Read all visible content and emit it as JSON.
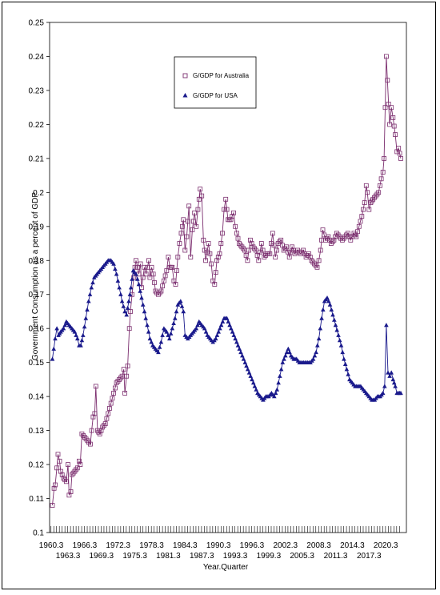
{
  "chart_data": {
    "type": "line",
    "xlabel": "Year.Quarter",
    "ylabel": "Government Consumption as a percent of GDP",
    "ylim": [
      0.1,
      0.25
    ],
    "yticks": [
      "0.1",
      "0.11",
      "0.12",
      "0.13",
      "0.14",
      "0.15",
      "0.16",
      "0.17",
      "0.18",
      "0.19",
      "0.2",
      "0.21",
      "0.22",
      "0.23",
      "0.24",
      "0.25"
    ],
    "xlim": [
      1960.0,
      2024.0
    ],
    "xticks_row1": [
      "1960.3",
      "1966.3",
      "1972.3",
      "1978.3",
      "1984.3",
      "1990.3",
      "1996.3",
      "2002.3",
      "2008.3",
      "2014.3",
      "2020.3"
    ],
    "xticks_row2": [
      "1963.3",
      "1969.3",
      "1975.3",
      "1981.3",
      "1987.3",
      "1993.3",
      "1999.3",
      "2005.3",
      "2011.3",
      "2017.3"
    ],
    "legend_position": "top-center",
    "series": [
      {
        "name": "G/GDP for Australia",
        "marker": "square-open",
        "color": "#7b2d6e",
        "anchors": [
          [
            1960.5,
            0.108
          ],
          [
            1960.8,
            0.113
          ],
          [
            1961.0,
            0.114
          ],
          [
            1961.3,
            0.119
          ],
          [
            1961.5,
            0.123
          ],
          [
            1961.8,
            0.121
          ],
          [
            1962.0,
            0.118
          ],
          [
            1962.5,
            0.116
          ],
          [
            1963.0,
            0.115
          ],
          [
            1963.3,
            0.12
          ],
          [
            1963.5,
            0.111
          ],
          [
            1963.8,
            0.112
          ],
          [
            1964.0,
            0.117
          ],
          [
            1964.5,
            0.118
          ],
          [
            1965.0,
            0.119
          ],
          [
            1965.3,
            0.121
          ],
          [
            1965.5,
            0.12
          ],
          [
            1965.8,
            0.129
          ],
          [
            1966.3,
            0.128
          ],
          [
            1966.8,
            0.127
          ],
          [
            1967.3,
            0.126
          ],
          [
            1967.8,
            0.134
          ],
          [
            1968.1,
            0.135
          ],
          [
            1968.3,
            0.143
          ],
          [
            1968.6,
            0.13
          ],
          [
            1969.0,
            0.129
          ],
          [
            1969.5,
            0.131
          ],
          [
            1970.0,
            0.132
          ],
          [
            1970.5,
            0.135
          ],
          [
            1971.0,
            0.138
          ],
          [
            1971.5,
            0.141
          ],
          [
            1972.0,
            0.144
          ],
          [
            1972.5,
            0.145
          ],
          [
            1973.0,
            0.146
          ],
          [
            1973.3,
            0.148
          ],
          [
            1973.5,
            0.141
          ],
          [
            1973.8,
            0.146
          ],
          [
            1974.0,
            0.149
          ],
          [
            1974.3,
            0.16
          ],
          [
            1974.5,
            0.165
          ],
          [
            1974.8,
            0.17
          ],
          [
            1975.1,
            0.175
          ],
          [
            1975.3,
            0.178
          ],
          [
            1975.5,
            0.18
          ],
          [
            1975.8,
            0.178
          ],
          [
            1976.0,
            0.176
          ],
          [
            1976.3,
            0.179
          ],
          [
            1976.5,
            0.172
          ],
          [
            1977.0,
            0.178
          ],
          [
            1977.3,
            0.176
          ],
          [
            1977.8,
            0.18
          ],
          [
            1978.0,
            0.175
          ],
          [
            1978.3,
            0.178
          ],
          [
            1978.6,
            0.176
          ],
          [
            1979.0,
            0.171
          ],
          [
            1979.5,
            0.17
          ],
          [
            1980.0,
            0.171
          ],
          [
            1980.5,
            0.174
          ],
          [
            1981.0,
            0.177
          ],
          [
            1981.3,
            0.181
          ],
          [
            1981.6,
            0.178
          ],
          [
            1982.0,
            0.178
          ],
          [
            1982.3,
            0.174
          ],
          [
            1982.6,
            0.173
          ],
          [
            1983.0,
            0.181
          ],
          [
            1983.3,
            0.185
          ],
          [
            1983.6,
            0.188
          ],
          [
            1984.0,
            0.192
          ],
          [
            1984.3,
            0.183
          ],
          [
            1984.6,
            0.187
          ],
          [
            1985.0,
            0.196
          ],
          [
            1985.3,
            0.181
          ],
          [
            1985.6,
            0.189
          ],
          [
            1986.0,
            0.194
          ],
          [
            1986.3,
            0.19
          ],
          [
            1986.6,
            0.195
          ],
          [
            1987.0,
            0.201
          ],
          [
            1987.3,
            0.199
          ],
          [
            1987.6,
            0.186
          ],
          [
            1988.0,
            0.18
          ],
          [
            1988.5,
            0.185
          ],
          [
            1989.0,
            0.179
          ],
          [
            1989.3,
            0.174
          ],
          [
            1989.6,
            0.173
          ],
          [
            1990.0,
            0.18
          ],
          [
            1990.5,
            0.182
          ],
          [
            1991.0,
            0.188
          ],
          [
            1991.3,
            0.195
          ],
          [
            1991.6,
            0.198
          ],
          [
            1992.0,
            0.192
          ],
          [
            1992.5,
            0.192
          ],
          [
            1993.0,
            0.194
          ],
          [
            1993.3,
            0.19
          ],
          [
            1993.6,
            0.188
          ],
          [
            1994.0,
            0.185
          ],
          [
            1994.5,
            0.184
          ],
          [
            1995.0,
            0.183
          ],
          [
            1995.5,
            0.18
          ],
          [
            1996.0,
            0.186
          ],
          [
            1996.5,
            0.184
          ],
          [
            1997.0,
            0.183
          ],
          [
            1997.5,
            0.18
          ],
          [
            1998.0,
            0.185
          ],
          [
            1998.5,
            0.181
          ],
          [
            1999.0,
            0.182
          ],
          [
            1999.5,
            0.182
          ],
          [
            2000.0,
            0.188
          ],
          [
            2000.5,
            0.181
          ],
          [
            2001.0,
            0.185
          ],
          [
            2001.5,
            0.186
          ],
          [
            2002.0,
            0.183
          ],
          [
            2002.5,
            0.184
          ],
          [
            2003.0,
            0.181
          ],
          [
            2003.5,
            0.184
          ],
          [
            2004.0,
            0.182
          ],
          [
            2004.5,
            0.183
          ],
          [
            2005.0,
            0.182
          ],
          [
            2005.5,
            0.183
          ],
          [
            2006.0,
            0.181
          ],
          [
            2006.5,
            0.182
          ],
          [
            2007.0,
            0.18
          ],
          [
            2007.5,
            0.179
          ],
          [
            2008.0,
            0.178
          ],
          [
            2008.3,
            0.18
          ],
          [
            2008.6,
            0.183
          ],
          [
            2009.0,
            0.189
          ],
          [
            2009.5,
            0.186
          ],
          [
            2010.0,
            0.187
          ],
          [
            2010.5,
            0.185
          ],
          [
            2011.0,
            0.186
          ],
          [
            2011.5,
            0.188
          ],
          [
            2012.0,
            0.187
          ],
          [
            2012.5,
            0.186
          ],
          [
            2013.0,
            0.187
          ],
          [
            2013.5,
            0.188
          ],
          [
            2014.0,
            0.186
          ],
          [
            2014.3,
            0.187
          ],
          [
            2014.6,
            0.188
          ],
          [
            2015.0,
            0.187
          ],
          [
            2015.5,
            0.19
          ],
          [
            2016.0,
            0.193
          ],
          [
            2016.5,
            0.197
          ],
          [
            2016.8,
            0.202
          ],
          [
            2017.0,
            0.2
          ],
          [
            2017.3,
            0.195
          ],
          [
            2017.6,
            0.197
          ],
          [
            2018.0,
            0.198
          ],
          [
            2018.5,
            0.199
          ],
          [
            2019.0,
            0.2
          ],
          [
            2019.5,
            0.204
          ],
          [
            2019.8,
            0.206
          ],
          [
            2020.0,
            0.21
          ],
          [
            2020.2,
            0.225
          ],
          [
            2020.4,
            0.24
          ],
          [
            2020.6,
            0.233
          ],
          [
            2020.8,
            0.226
          ],
          [
            2021.0,
            0.22
          ],
          [
            2021.3,
            0.225
          ],
          [
            2021.6,
            0.222
          ],
          [
            2022.0,
            0.217
          ],
          [
            2022.3,
            0.212
          ],
          [
            2022.6,
            0.213
          ],
          [
            2023.0,
            0.21
          ]
        ]
      },
      {
        "name": "G/GDP for USA",
        "marker": "triangle-filled",
        "color": "#1a1a8c",
        "anchors": [
          [
            1960.5,
            0.151
          ],
          [
            1961.0,
            0.157
          ],
          [
            1961.3,
            0.16
          ],
          [
            1961.6,
            0.158
          ],
          [
            1962.0,
            0.159
          ],
          [
            1962.5,
            0.16
          ],
          [
            1963.0,
            0.162
          ],
          [
            1963.5,
            0.161
          ],
          [
            1964.0,
            0.16
          ],
          [
            1964.5,
            0.159
          ],
          [
            1965.0,
            0.157
          ],
          [
            1965.3,
            0.155
          ],
          [
            1965.6,
            0.155
          ],
          [
            1966.0,
            0.158
          ],
          [
            1966.5,
            0.163
          ],
          [
            1967.0,
            0.168
          ],
          [
            1967.5,
            0.172
          ],
          [
            1968.0,
            0.175
          ],
          [
            1968.5,
            0.176
          ],
          [
            1969.0,
            0.177
          ],
          [
            1969.5,
            0.178
          ],
          [
            1970.0,
            0.179
          ],
          [
            1970.5,
            0.18
          ],
          [
            1971.0,
            0.18
          ],
          [
            1971.5,
            0.179
          ],
          [
            1972.0,
            0.176
          ],
          [
            1972.5,
            0.172
          ],
          [
            1973.0,
            0.168
          ],
          [
            1973.5,
            0.165
          ],
          [
            1973.8,
            0.164
          ],
          [
            1974.2,
            0.168
          ],
          [
            1974.6,
            0.172
          ],
          [
            1975.0,
            0.177
          ],
          [
            1975.5,
            0.176
          ],
          [
            1976.0,
            0.173
          ],
          [
            1976.5,
            0.169
          ],
          [
            1977.0,
            0.165
          ],
          [
            1977.5,
            0.161
          ],
          [
            1978.0,
            0.157
          ],
          [
            1978.5,
            0.155
          ],
          [
            1979.0,
            0.154
          ],
          [
            1979.5,
            0.153
          ],
          [
            1980.0,
            0.156
          ],
          [
            1980.5,
            0.16
          ],
          [
            1981.0,
            0.159
          ],
          [
            1981.5,
            0.157
          ],
          [
            1982.0,
            0.16
          ],
          [
            1982.5,
            0.163
          ],
          [
            1983.0,
            0.167
          ],
          [
            1983.5,
            0.168
          ],
          [
            1984.0,
            0.165
          ],
          [
            1984.3,
            0.158
          ],
          [
            1984.8,
            0.157
          ],
          [
            1985.3,
            0.158
          ],
          [
            1985.8,
            0.159
          ],
          [
            1986.3,
            0.16
          ],
          [
            1986.8,
            0.162
          ],
          [
            1987.3,
            0.161
          ],
          [
            1987.8,
            0.16
          ],
          [
            1988.3,
            0.158
          ],
          [
            1988.8,
            0.157
          ],
          [
            1989.3,
            0.156
          ],
          [
            1989.8,
            0.157
          ],
          [
            1990.3,
            0.159
          ],
          [
            1990.8,
            0.161
          ],
          [
            1991.3,
            0.163
          ],
          [
            1991.8,
            0.163
          ],
          [
            1992.3,
            0.161
          ],
          [
            1992.8,
            0.159
          ],
          [
            1993.3,
            0.157
          ],
          [
            1993.8,
            0.155
          ],
          [
            1994.3,
            0.153
          ],
          [
            1994.8,
            0.151
          ],
          [
            1995.3,
            0.149
          ],
          [
            1995.8,
            0.147
          ],
          [
            1996.3,
            0.145
          ],
          [
            1996.8,
            0.143
          ],
          [
            1997.3,
            0.141
          ],
          [
            1997.8,
            0.14
          ],
          [
            1998.3,
            0.139
          ],
          [
            1998.8,
            0.14
          ],
          [
            1999.3,
            0.14
          ],
          [
            1999.8,
            0.141
          ],
          [
            2000.3,
            0.14
          ],
          [
            2000.8,
            0.142
          ],
          [
            2001.3,
            0.146
          ],
          [
            2001.8,
            0.15
          ],
          [
            2002.3,
            0.152
          ],
          [
            2002.8,
            0.154
          ],
          [
            2003.3,
            0.152
          ],
          [
            2003.8,
            0.151
          ],
          [
            2004.3,
            0.151
          ],
          [
            2004.8,
            0.15
          ],
          [
            2005.3,
            0.15
          ],
          [
            2005.8,
            0.15
          ],
          [
            2006.3,
            0.15
          ],
          [
            2006.8,
            0.15
          ],
          [
            2007.3,
            0.151
          ],
          [
            2007.8,
            0.153
          ],
          [
            2008.3,
            0.157
          ],
          [
            2008.8,
            0.163
          ],
          [
            2009.3,
            0.168
          ],
          [
            2009.8,
            0.169
          ],
          [
            2010.3,
            0.167
          ],
          [
            2010.8,
            0.164
          ],
          [
            2011.3,
            0.161
          ],
          [
            2011.8,
            0.158
          ],
          [
            2012.3,
            0.155
          ],
          [
            2012.8,
            0.151
          ],
          [
            2013.3,
            0.148
          ],
          [
            2013.8,
            0.145
          ],
          [
            2014.3,
            0.144
          ],
          [
            2014.8,
            0.143
          ],
          [
            2015.3,
            0.143
          ],
          [
            2015.8,
            0.143
          ],
          [
            2016.3,
            0.142
          ],
          [
            2016.8,
            0.141
          ],
          [
            2017.3,
            0.14
          ],
          [
            2017.8,
            0.139
          ],
          [
            2018.3,
            0.139
          ],
          [
            2018.8,
            0.14
          ],
          [
            2019.3,
            0.14
          ],
          [
            2019.8,
            0.141
          ],
          [
            2020.1,
            0.143
          ],
          [
            2020.4,
            0.161
          ],
          [
            2020.7,
            0.147
          ],
          [
            2021.0,
            0.146
          ],
          [
            2021.3,
            0.147
          ],
          [
            2021.6,
            0.145
          ],
          [
            2022.0,
            0.143
          ],
          [
            2022.3,
            0.141
          ],
          [
            2022.6,
            0.141
          ],
          [
            2023.0,
            0.141
          ]
        ]
      }
    ]
  }
}
